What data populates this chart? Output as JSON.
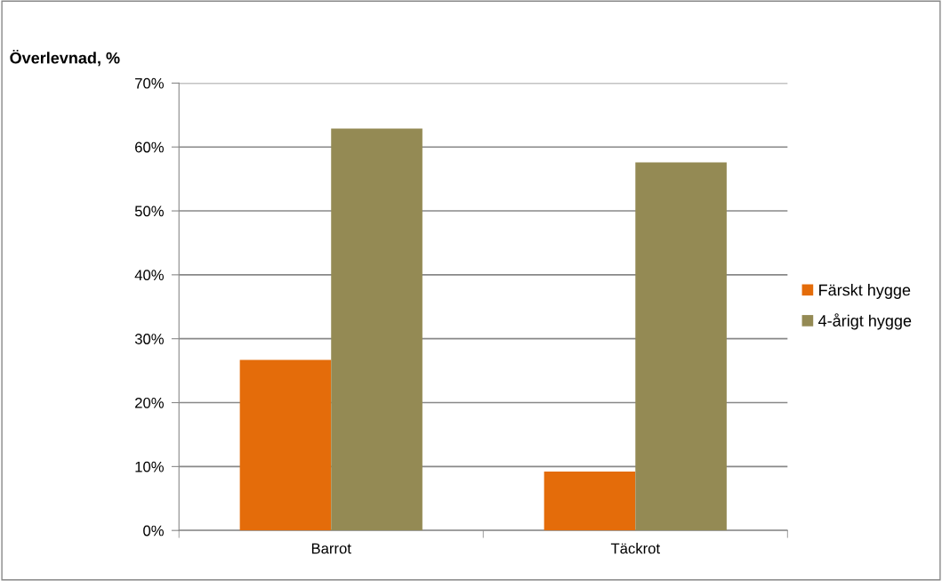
{
  "chart_data": {
    "type": "bar",
    "title": "Överlevnad, %",
    "categories": [
      "Barrot",
      "Täckrot"
    ],
    "series": [
      {
        "name": "Färskt hygge",
        "color": "#e46c0a",
        "values": [
          26.7,
          9.2
        ]
      },
      {
        "name": "4-årigt hygge",
        "color": "#948a54",
        "values": [
          62.9,
          57.6
        ]
      }
    ],
    "ylim": [
      0,
      70
    ],
    "yticks": [
      {
        "value": 0,
        "label": "0%"
      },
      {
        "value": 10,
        "label": "10%"
      },
      {
        "value": 20,
        "label": "20%"
      },
      {
        "value": 30,
        "label": "30%"
      },
      {
        "value": 40,
        "label": "40%"
      },
      {
        "value": 50,
        "label": "50%"
      },
      {
        "value": 60,
        "label": "60%"
      },
      {
        "value": 70,
        "label": "70%"
      }
    ],
    "grid": "y",
    "legend": "right"
  }
}
